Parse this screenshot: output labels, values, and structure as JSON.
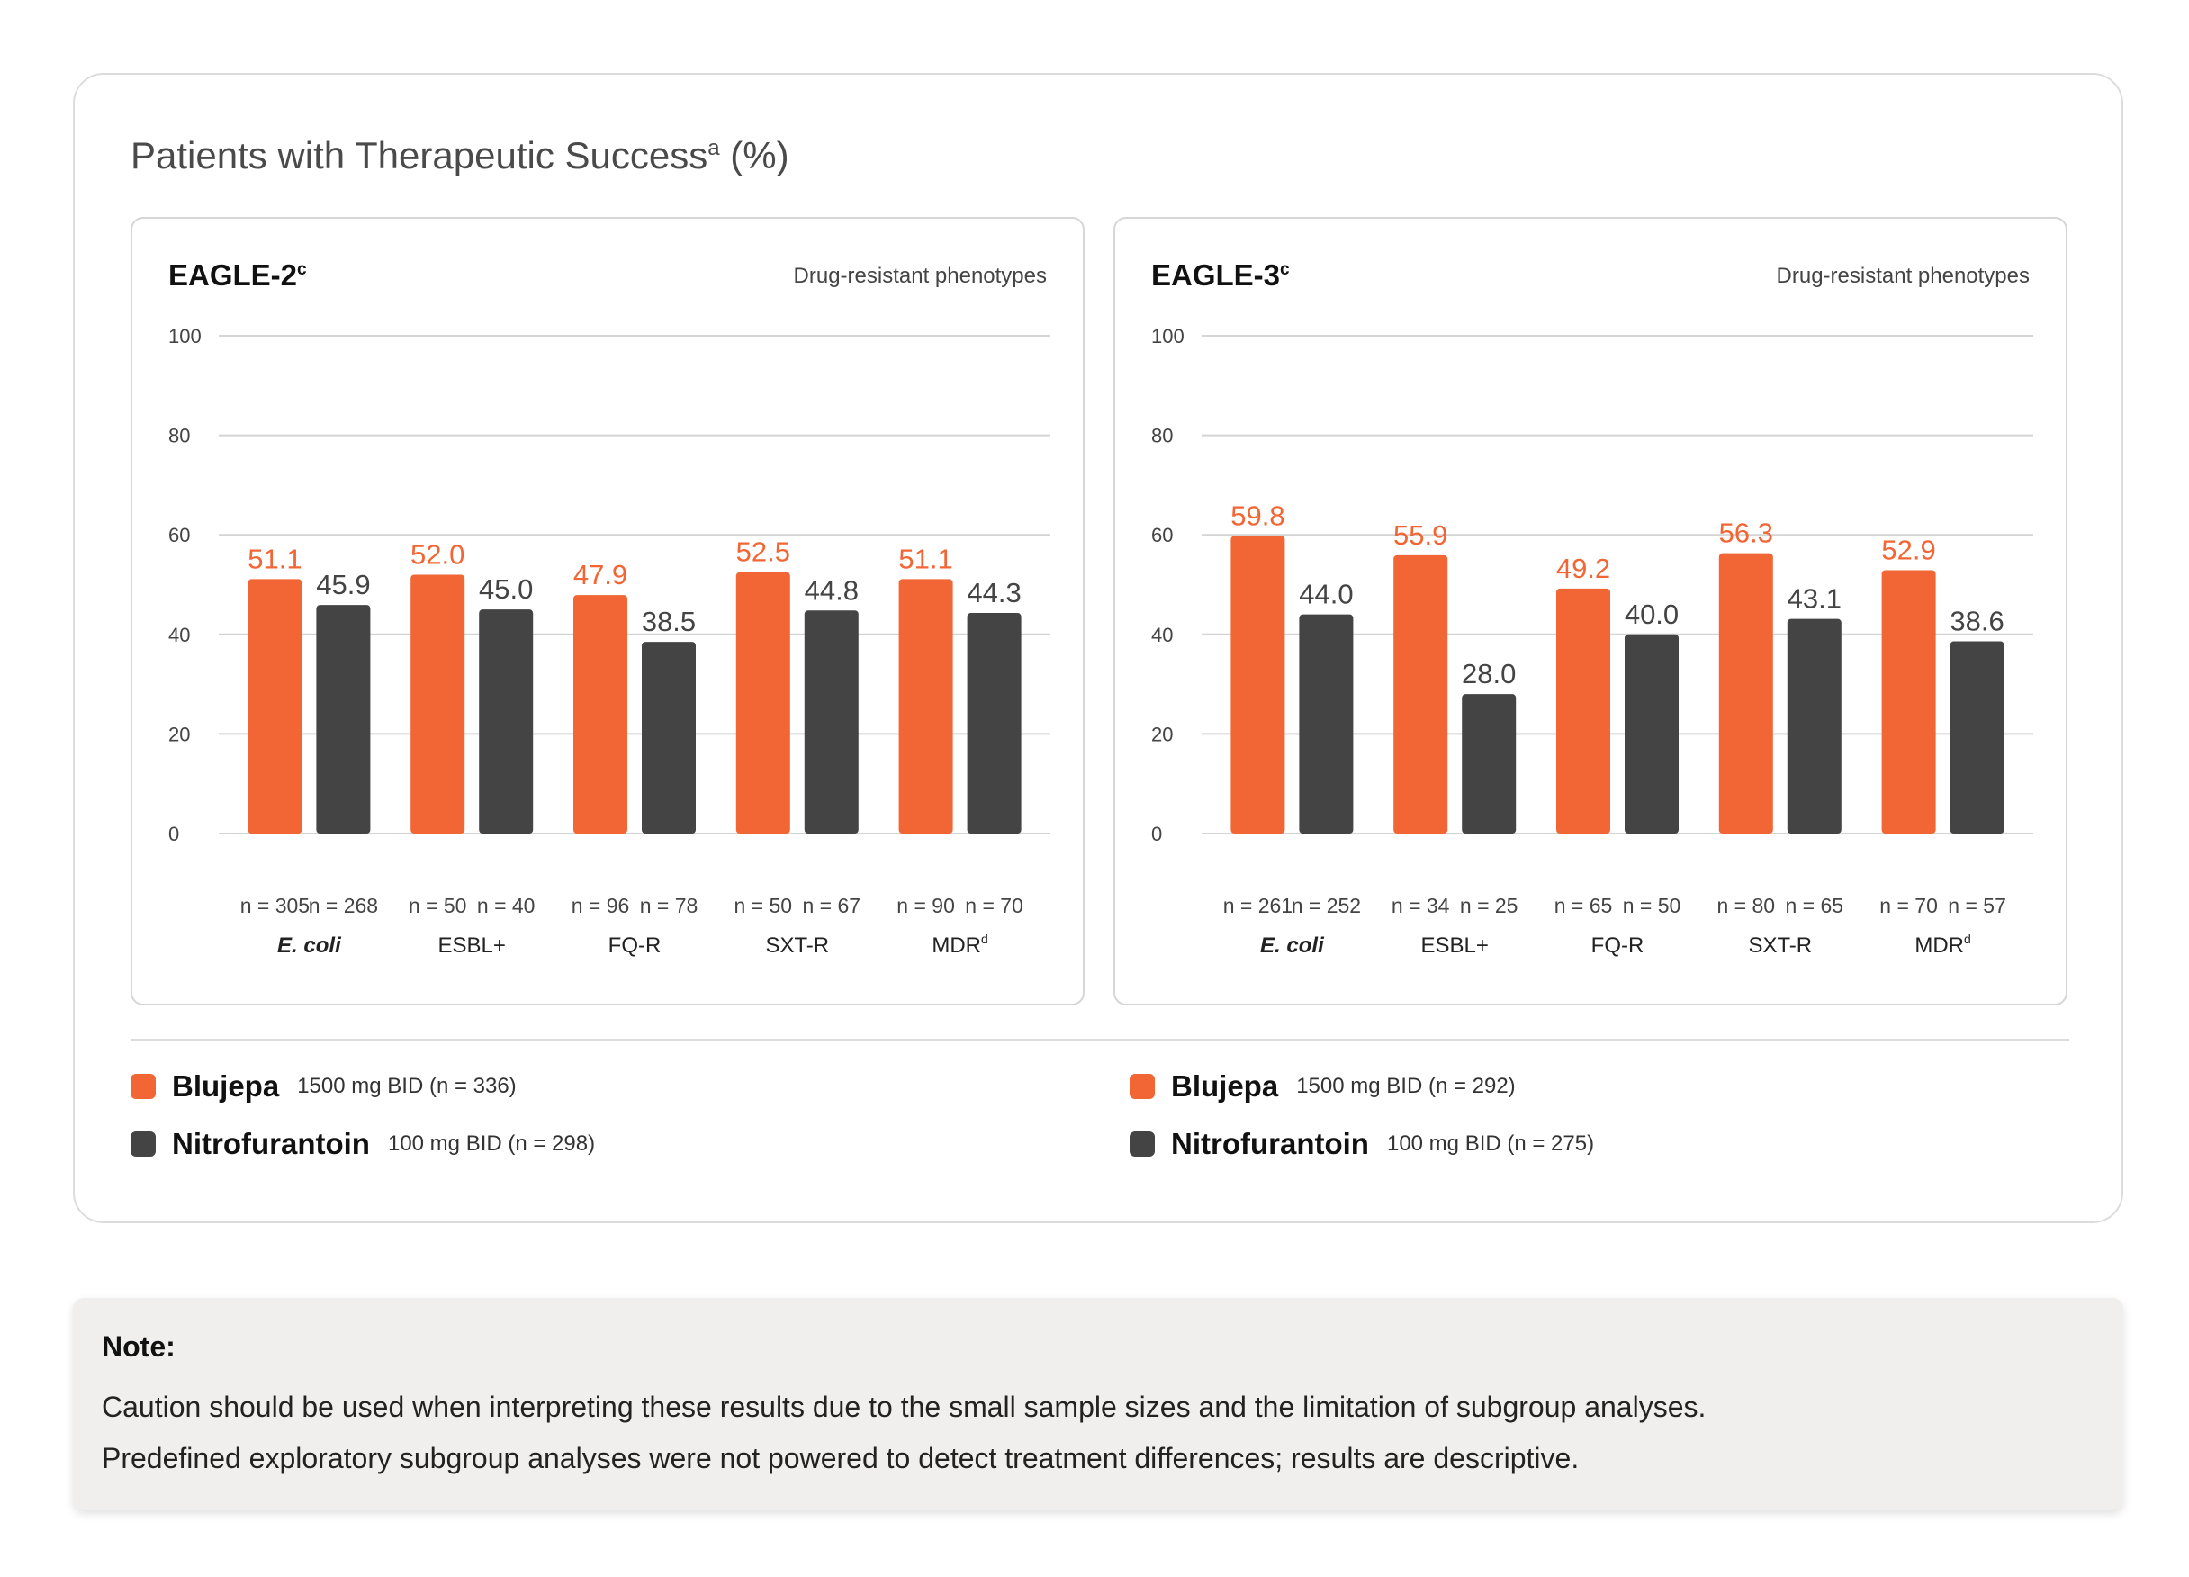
{
  "page": {
    "title": "Patients with Therapeutic Success",
    "title_sup": "a",
    "title_suffix": " (%)"
  },
  "colors": {
    "blujepa": "#f26534",
    "nitrofurantoin": "#444444"
  },
  "chart_data": [
    {
      "type": "bar",
      "title": "EAGLE-2",
      "title_sup": "c",
      "subtitle": "Drug-resistant phenotypes",
      "ylim": [
        0,
        100
      ],
      "yticks": [
        0,
        20,
        40,
        60,
        80,
        100
      ],
      "grid": true,
      "categories": [
        "E. coli",
        "ESBL+",
        "FQ-R",
        "SXT-R",
        "MDR"
      ],
      "category_sups": [
        "",
        "",
        "",
        "",
        "d"
      ],
      "series": [
        {
          "name": "Blujepa",
          "color": "#f26534",
          "values": [
            51.1,
            52.0,
            47.9,
            52.5,
            51.1
          ],
          "n": [
            "n = 305",
            "n = 50",
            "n = 96",
            "n = 50",
            "n = 90"
          ]
        },
        {
          "name": "Nitrofurantoin",
          "color": "#444444",
          "values": [
            45.9,
            45.0,
            38.5,
            44.8,
            44.3
          ],
          "n": [
            "n = 268",
            "n = 40",
            "n = 78",
            "n = 67",
            "n = 70"
          ]
        }
      ]
    },
    {
      "type": "bar",
      "title": "EAGLE-3",
      "title_sup": "c",
      "subtitle": "Drug-resistant phenotypes",
      "ylim": [
        0,
        100
      ],
      "yticks": [
        0,
        20,
        40,
        60,
        80,
        100
      ],
      "grid": true,
      "categories": [
        "E. coli",
        "ESBL+",
        "FQ-R",
        "SXT-R",
        "MDR"
      ],
      "category_sups": [
        "",
        "",
        "",
        "",
        "d"
      ],
      "series": [
        {
          "name": "Blujepa",
          "color": "#f26534",
          "values": [
            59.8,
            55.9,
            49.2,
            56.3,
            52.9
          ],
          "n": [
            "n = 261",
            "n = 34",
            "n = 65",
            "n = 80",
            "n = 70"
          ]
        },
        {
          "name": "Nitrofurantoin",
          "color": "#444444",
          "values": [
            44.0,
            28.0,
            40.0,
            43.1,
            38.6
          ],
          "n": [
            "n = 252",
            "n = 25",
            "n = 50",
            "n = 65",
            "n = 57"
          ]
        }
      ]
    }
  ],
  "legends": [
    [
      {
        "name": "Blujepa",
        "dose": "1500 mg BID (n = 336)",
        "color": "#f26534"
      },
      {
        "name": "Nitrofurantoin",
        "dose": "100 mg BID (n = 298)",
        "color": "#444444"
      }
    ],
    [
      {
        "name": "Blujepa",
        "dose": "1500 mg BID (n = 292)",
        "color": "#f26534"
      },
      {
        "name": "Nitrofurantoin",
        "dose": "100 mg BID (n = 275)",
        "color": "#444444"
      }
    ]
  ],
  "note": {
    "title": "Note:",
    "lines": [
      "Caution should be used when interpreting these results due to the small sample sizes and the limitation of subgroup analyses.",
      "Predefined exploratory subgroup analyses were not powered to detect treatment differences; results are descriptive."
    ]
  }
}
